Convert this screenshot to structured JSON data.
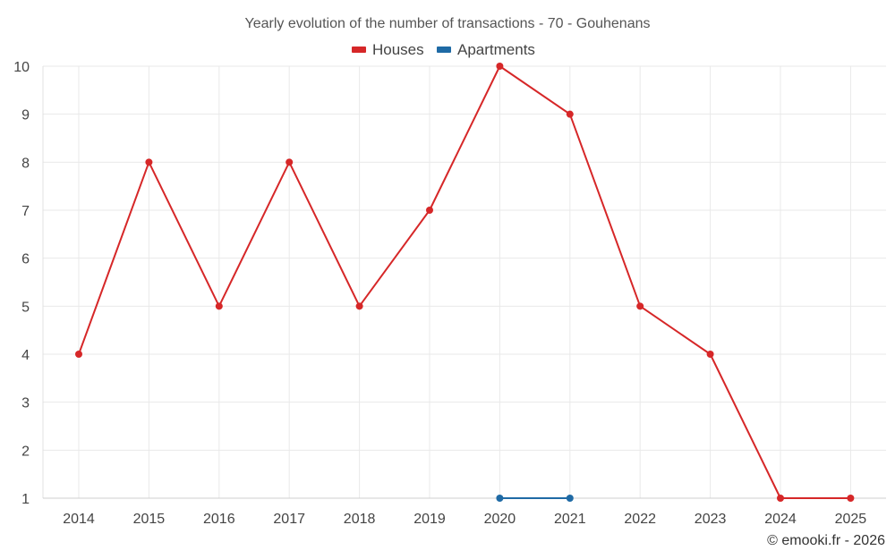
{
  "chart_data": {
    "type": "line",
    "title": "Yearly evolution of the number of transactions - 70 - Gouhenans",
    "categories": [
      "2014",
      "2015",
      "2016",
      "2017",
      "2018",
      "2019",
      "2020",
      "2021",
      "2022",
      "2023",
      "2024",
      "2025"
    ],
    "series": [
      {
        "name": "Houses",
        "color": "#d62728",
        "values": [
          4,
          8,
          5,
          8,
          5,
          7,
          10,
          9,
          5,
          4,
          1,
          1
        ]
      },
      {
        "name": "Apartments",
        "color": "#1f6aa5",
        "values": [
          null,
          null,
          null,
          null,
          null,
          null,
          1,
          1,
          null,
          null,
          null,
          null
        ]
      }
    ],
    "yticks": [
      1,
      2,
      3,
      4,
      5,
      6,
      7,
      8,
      9,
      10
    ],
    "ylim": [
      1,
      10
    ],
    "xlabel": "",
    "ylabel": "",
    "grid": true,
    "legend": "top-center"
  },
  "credit": "© emooki.fr - 2026"
}
